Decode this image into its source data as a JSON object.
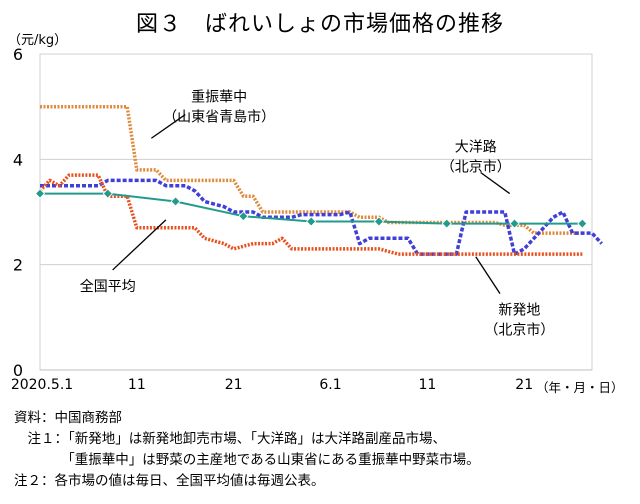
{
  "title": "図３　ばれいしょの市場価格の推移",
  "notes": [
    "資料：中国商務部",
    "　注１：「新発地」は新発地卸売市場、「大洋路」は大洋路副産品市場、",
    "　　　　「重振華中」は野菜の主産地である山東省にある重振華中野菜市場。",
    "注２：各市場の値は毎日、全国平均値は毎週公表。"
  ],
  "chart_data": {
    "type": "line",
    "title": "図３　ばれいしょの市場価格の推移",
    "ylabel": "（元/kg）",
    "xlabel": "（年・月・日）",
    "ylim": [
      0,
      6
    ],
    "yticks": [
      0,
      2,
      4,
      6
    ],
    "xlim": [
      0,
      57
    ],
    "xticks": [
      {
        "x": 0,
        "label": "2020.5.1"
      },
      {
        "x": 10,
        "label": "11"
      },
      {
        "x": 20,
        "label": "21"
      },
      {
        "x": 30,
        "label": "6.1"
      },
      {
        "x": 40,
        "label": "11"
      },
      {
        "x": 50,
        "label": "21"
      }
    ],
    "grid": true,
    "series": [
      {
        "name": "重振華中（山東省青島市）",
        "color": "#E08A3C",
        "style": "dotted",
        "points": [
          [
            0,
            5
          ],
          [
            9,
            5
          ],
          [
            10,
            3.8
          ],
          [
            12,
            3.8
          ],
          [
            13,
            3.6
          ],
          [
            20,
            3.6
          ],
          [
            21,
            3.3
          ],
          [
            22,
            3.3
          ],
          [
            23,
            3.0
          ],
          [
            32,
            3.0
          ],
          [
            33,
            2.9
          ],
          [
            35,
            2.9
          ],
          [
            36,
            2.8
          ],
          [
            47,
            2.8
          ],
          [
            48,
            2.75
          ],
          [
            50,
            2.75
          ],
          [
            51,
            2.6
          ],
          [
            56,
            2.6
          ]
        ]
      },
      {
        "name": "大洋路（北京市）",
        "color": "#4040D8",
        "style": "dashed",
        "points": [
          [
            0,
            3.5
          ],
          [
            6,
            3.5
          ],
          [
            7,
            3.6
          ],
          [
            12,
            3.6
          ],
          [
            13,
            3.5
          ],
          [
            15,
            3.5
          ],
          [
            16,
            3.4
          ],
          [
            17,
            3.2
          ],
          [
            19,
            3.1
          ],
          [
            20,
            3.0
          ],
          [
            22,
            3.0
          ],
          [
            23,
            2.9
          ],
          [
            26,
            2.9
          ],
          [
            27,
            2.95
          ],
          [
            31,
            2.95
          ],
          [
            32,
            3.0
          ],
          [
            33,
            2.4
          ],
          [
            34,
            2.5
          ],
          [
            38,
            2.5
          ],
          [
            39,
            2.2
          ],
          [
            43,
            2.2
          ],
          [
            44,
            3.0
          ],
          [
            48,
            3.0
          ],
          [
            49,
            2.2
          ],
          [
            50,
            2.3
          ],
          [
            53,
            2.9
          ],
          [
            54,
            3.0
          ],
          [
            55,
            2.6
          ],
          [
            57,
            2.6
          ],
          [
            58,
            2.4
          ]
        ]
      },
      {
        "name": "新発地（北京市）",
        "color": "#E8501E",
        "style": "dotted",
        "points": [
          [
            0,
            3.4
          ],
          [
            1,
            3.6
          ],
          [
            2,
            3.5
          ],
          [
            3,
            3.7
          ],
          [
            6,
            3.7
          ],
          [
            7,
            3.3
          ],
          [
            9,
            3.3
          ],
          [
            10,
            2.7
          ],
          [
            16,
            2.7
          ],
          [
            17,
            2.5
          ],
          [
            19,
            2.4
          ],
          [
            20,
            2.3
          ],
          [
            22,
            2.4
          ],
          [
            24,
            2.4
          ],
          [
            25,
            2.5
          ],
          [
            26,
            2.3
          ],
          [
            34,
            2.3
          ],
          [
            35,
            2.3
          ],
          [
            37,
            2.2
          ],
          [
            56,
            2.2
          ]
        ]
      },
      {
        "name": "全国平均",
        "color": "#239B8C",
        "style": "solid",
        "markers": true,
        "points": [
          [
            0,
            3.35
          ],
          [
            7,
            3.35
          ],
          [
            14,
            3.2
          ],
          [
            21,
            2.92
          ],
          [
            28,
            2.82
          ],
          [
            35,
            2.82
          ],
          [
            42,
            2.78
          ],
          [
            49,
            2.78
          ],
          [
            56,
            2.78
          ]
        ]
      }
    ],
    "annotations": [
      {
        "lines": [
          "重振華中",
          "（山東省青島市）"
        ],
        "label_at": [
          18.5,
          5.1
        ],
        "leader": [
          [
            15,
            4.85
          ],
          [
            11.5,
            4.4
          ]
        ]
      },
      {
        "lines": [
          "大洋路",
          "（北京市）"
        ],
        "label_at": [
          45,
          4.15
        ],
        "leader": [
          [
            45.5,
            3.75
          ],
          [
            48.5,
            3.35
          ]
        ]
      },
      {
        "lines": [
          "新発地",
          "（北京市）"
        ],
        "label_at": [
          49.5,
          1.05
        ],
        "leader": [
          [
            47.5,
            1.45
          ],
          [
            45,
            2.15
          ]
        ]
      },
      {
        "lines": [
          "全国平均"
        ],
        "label_at": [
          7,
          1.5
        ],
        "leader": [
          [
            7.5,
            1.9
          ],
          [
            13,
            2.85
          ]
        ]
      }
    ]
  }
}
